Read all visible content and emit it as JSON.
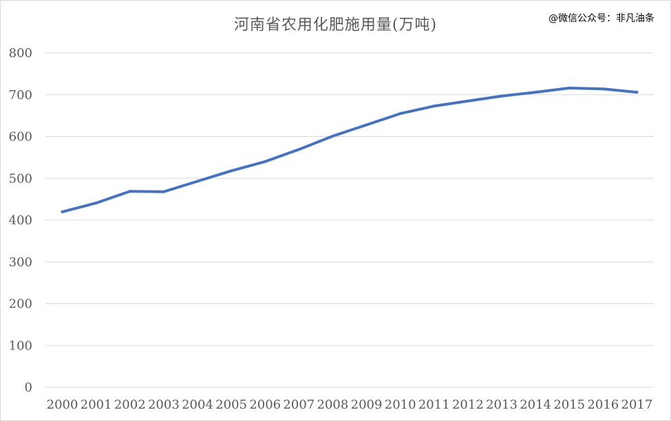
{
  "watermark": "@微信公众号：非凡油条",
  "chart_data": {
    "type": "line",
    "title": "河南省农用化肥施用量(万吨)",
    "xlabel": "",
    "ylabel": "",
    "ylim": [
      0,
      800
    ],
    "yticks": [
      0,
      100,
      200,
      300,
      400,
      500,
      600,
      700,
      800
    ],
    "grid": true,
    "legend": "none",
    "line_color": "#4472c4",
    "grid_color": "#d9d9d9",
    "categories": [
      "2000",
      "2001",
      "2002",
      "2003",
      "2004",
      "2005",
      "2006",
      "2007",
      "2008",
      "2009",
      "2010",
      "2011",
      "2012",
      "2013",
      "2014",
      "2015",
      "2016",
      "2017"
    ],
    "series": [
      {
        "values": [
          420,
          441,
          469,
          468,
          493,
          518,
          540,
          569,
          601,
          628,
          655,
          673,
          685,
          697,
          706,
          716,
          714,
          706
        ]
      }
    ]
  }
}
